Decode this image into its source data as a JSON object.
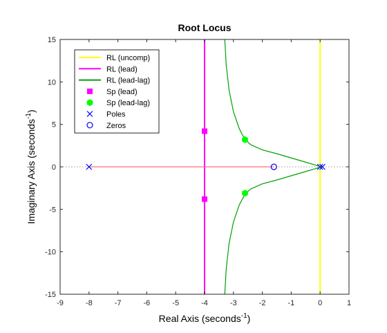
{
  "chart_data": {
    "type": "scatter",
    "title": "Root Locus",
    "xlabel": {
      "base": "Real Axis (seconds",
      "sup": "-1",
      "tail": ")"
    },
    "ylabel": {
      "base": "Imaginary Axis (seconds",
      "sup": "-1",
      "tail": ")"
    },
    "xlim": [
      -9,
      1
    ],
    "ylim": [
      -15,
      15
    ],
    "xticks": [
      -9,
      -8,
      -7,
      -6,
      -5,
      -4,
      -3,
      -2,
      -1,
      0,
      1
    ],
    "yticks": [
      -15,
      -10,
      -5,
      0,
      5,
      10,
      15
    ],
    "xtick_labels": [
      "-9",
      "-8",
      "-7",
      "-6",
      "-5",
      "-4",
      "-3",
      "-2",
      "-1",
      "0",
      "1"
    ],
    "ytick_labels": [
      "-15",
      "-10",
      "-5",
      "0",
      "5",
      "10",
      "15"
    ],
    "grid": false,
    "legend_position": "top-left",
    "legend": [
      {
        "label": "RL (uncomp)",
        "kind": "line",
        "color": "#ffff00"
      },
      {
        "label": "RL (lead)",
        "kind": "line",
        "color": "#ff00ff"
      },
      {
        "label": "RL (lead-lag)",
        "kind": "line",
        "color": "#00a000"
      },
      {
        "label": "Sp (lead)",
        "kind": "square",
        "color": "#ff00ff"
      },
      {
        "label": "Sp (lead-lag)",
        "kind": "hexagon",
        "color": "#00ff00"
      },
      {
        "label": "Poles",
        "kind": "x",
        "color": "#0000ff"
      },
      {
        "label": "Zeros",
        "kind": "circle",
        "color": "#0000ff"
      }
    ],
    "series": [
      {
        "name": "RL (uncomp)",
        "kind": "line",
        "color": "#ffff00",
        "points": [
          [
            0.0,
            15
          ],
          [
            0.0,
            -15
          ]
        ]
      },
      {
        "name": "RL (lead)",
        "kind": "line",
        "color": "#ff00ff",
        "points": [
          [
            -4.0,
            15
          ],
          [
            -4.0,
            -15
          ]
        ]
      },
      {
        "kind": "line",
        "color": "#ff7070",
        "points": [
          [
            -8.0,
            0
          ],
          [
            -1.6,
            0
          ]
        ]
      },
      {
        "name": "RL (lead-lag)",
        "kind": "line",
        "color": "#00a000",
        "points": [
          [
            -3.3,
            15
          ],
          [
            -3.25,
            12
          ],
          [
            -3.15,
            9
          ],
          [
            -3.0,
            6.5
          ],
          [
            -2.8,
            4.5
          ],
          [
            -2.6,
            3.2
          ],
          [
            -2.4,
            2.6
          ],
          [
            -2.0,
            2.0
          ],
          [
            -1.5,
            1.55
          ],
          [
            -1.0,
            1.05
          ],
          [
            -0.5,
            0.55
          ],
          [
            -0.2,
            0.25
          ],
          [
            0.05,
            0
          ]
        ]
      },
      {
        "kind": "line",
        "color": "#00a000",
        "points": [
          [
            -3.3,
            -15
          ],
          [
            -3.25,
            -12
          ],
          [
            -3.15,
            -9
          ],
          [
            -3.0,
            -6.5
          ],
          [
            -2.8,
            -4.5
          ],
          [
            -2.6,
            -3.2
          ],
          [
            -2.4,
            -2.6
          ],
          [
            -2.0,
            -2.0
          ],
          [
            -1.5,
            -1.55
          ],
          [
            -1.0,
            -1.05
          ],
          [
            -0.5,
            -0.55
          ],
          [
            -0.2,
            -0.25
          ],
          [
            0.05,
            0
          ]
        ]
      },
      {
        "name": "Sp (lead)",
        "kind": "square",
        "color": "#ff00ff",
        "points": [
          [
            -4.0,
            4.2
          ],
          [
            -4.0,
            -3.8
          ]
        ]
      },
      {
        "name": "Sp (lead-lag)",
        "kind": "hexagon",
        "color": "#00ff00",
        "points": [
          [
            -2.6,
            3.2
          ],
          [
            -2.6,
            -3.1
          ]
        ]
      },
      {
        "name": "Poles",
        "kind": "x",
        "color": "#0000ff",
        "points": [
          [
            -8.0,
            0
          ],
          [
            0.0,
            0
          ],
          [
            0.08,
            0
          ]
        ]
      },
      {
        "name": "Zeros",
        "kind": "circle",
        "color": "#0000ff",
        "points": [
          [
            -1.6,
            0
          ]
        ]
      }
    ]
  }
}
